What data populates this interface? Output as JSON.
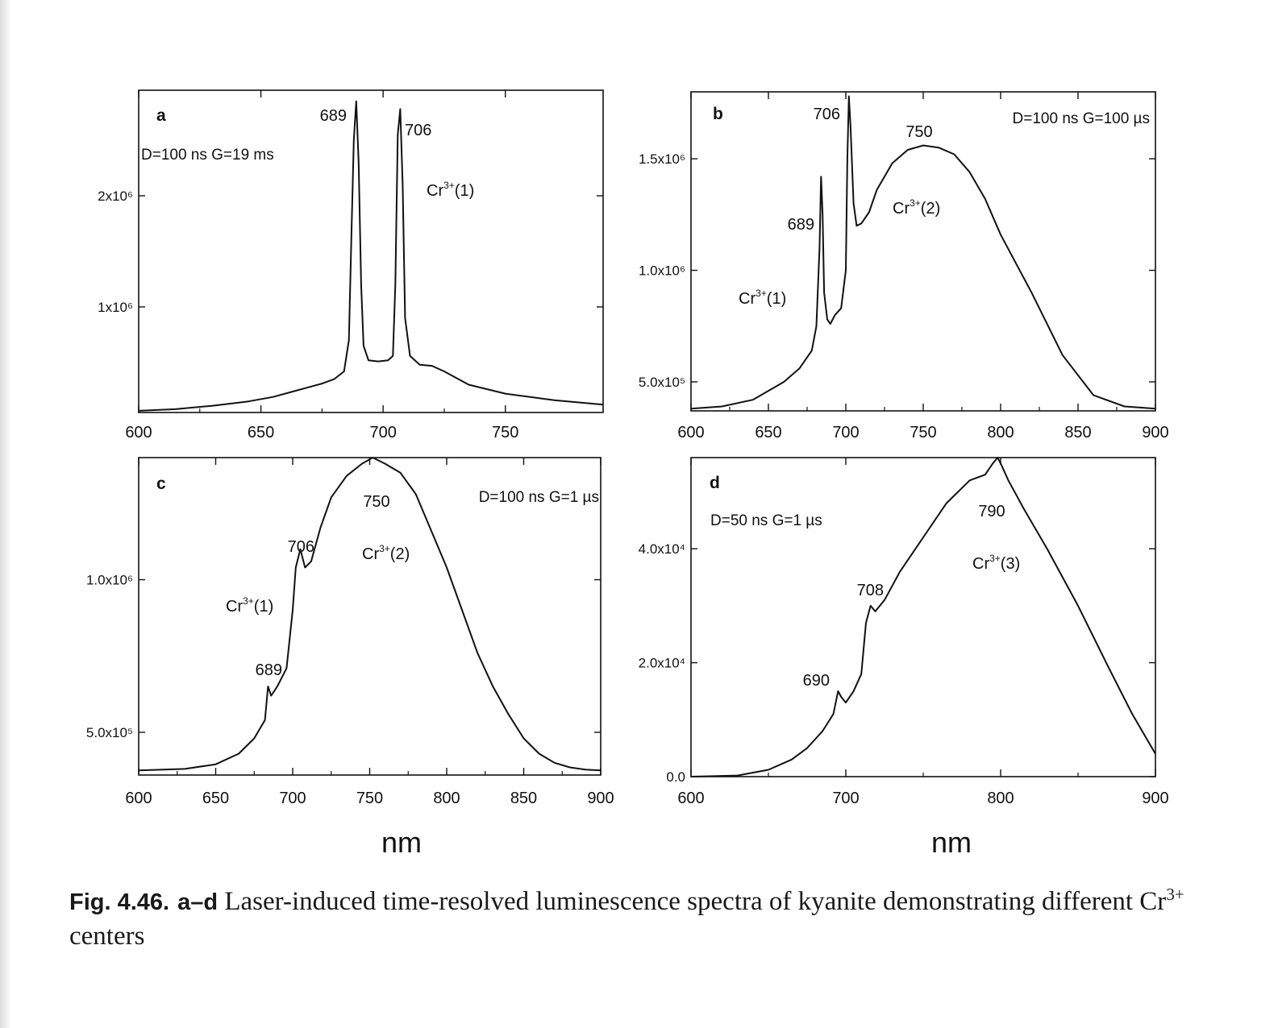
{
  "figure": {
    "caption": {
      "label": "Fig. 4.46.",
      "panels": "a–d",
      "text": "Laser-induced time-resolved luminescence spectra of kyanite demonstrating different Cr",
      "superscript": "3+",
      "text_end": "centers"
    },
    "xlabel_left": "nm",
    "xlabel_right": "nm"
  },
  "chart_data": [
    {
      "type": "line",
      "panel": "a",
      "condition": "D=100 ns G=19 ms",
      "xlim": [
        600,
        790
      ],
      "ylim": [
        50000,
        2950000
      ],
      "xticks": [
        600,
        650,
        700,
        750
      ],
      "yticks": [
        {
          "v": 1000000,
          "label": "1x10⁶"
        },
        {
          "v": 2000000,
          "label": "2x10⁶"
        }
      ],
      "series": [
        {
          "x": [
            600,
            615,
            630,
            645,
            655,
            665,
            675,
            680,
            684,
            686,
            687,
            688,
            689,
            690,
            691,
            692,
            694,
            698,
            702,
            704,
            705,
            706,
            707,
            708,
            709,
            711,
            715,
            720,
            725,
            735,
            750,
            770,
            790
          ],
          "y": [
            65000,
            80000,
            110000,
            150000,
            190000,
            250000,
            310000,
            350000,
            420000,
            700000,
            1600000,
            2500000,
            2850000,
            2300000,
            1200000,
            650000,
            520000,
            510000,
            520000,
            560000,
            1200000,
            2550000,
            2780000,
            2100000,
            900000,
            560000,
            480000,
            470000,
            420000,
            300000,
            220000,
            160000,
            120000
          ]
        }
      ],
      "annotations": [
        {
          "text": "689",
          "x": 689
        },
        {
          "text": "706",
          "x": 706
        },
        {
          "text": "Cr",
          "sup": "3+",
          "suffix": "(1)"
        }
      ]
    },
    {
      "type": "line",
      "panel": "b",
      "condition": "D=100 ns G=100 µs",
      "xlim": [
        600,
        900
      ],
      "ylim": [
        370000,
        1800000
      ],
      "xticks": [
        600,
        650,
        700,
        750,
        800,
        850,
        900
      ],
      "yticks": [
        {
          "v": 500000,
          "label": "5.0x10⁵"
        },
        {
          "v": 1000000,
          "label": "1.0x10⁶"
        },
        {
          "v": 1500000,
          "label": "1.5x10⁶"
        }
      ],
      "series": [
        {
          "x": [
            600,
            620,
            640,
            660,
            670,
            678,
            681,
            683,
            684,
            685,
            686,
            688,
            690,
            693,
            697,
            700,
            701,
            702,
            703,
            705,
            707,
            710,
            715,
            720,
            730,
            740,
            750,
            760,
            770,
            780,
            790,
            800,
            820,
            840,
            860,
            880,
            900
          ],
          "y": [
            380000,
            390000,
            420000,
            500000,
            560000,
            640000,
            750000,
            1100000,
            1420000,
            1250000,
            900000,
            780000,
            760000,
            800000,
            830000,
            1000000,
            1500000,
            1780000,
            1650000,
            1300000,
            1200000,
            1210000,
            1260000,
            1360000,
            1480000,
            1540000,
            1560000,
            1550000,
            1520000,
            1440000,
            1320000,
            1160000,
            900000,
            620000,
            440000,
            390000,
            380000
          ]
        }
      ],
      "annotations": [
        {
          "text": "689",
          "x": 689
        },
        {
          "text": "706",
          "x": 706
        },
        {
          "text": "750",
          "x": 750
        },
        {
          "text": "Cr",
          "sup": "3+",
          "suffix": "(1)"
        },
        {
          "text": "Cr",
          "sup": "3+",
          "suffix": "(2)"
        }
      ]
    },
    {
      "type": "line",
      "panel": "c",
      "condition": "D=100 ns G=1 µs",
      "xlim": [
        600,
        900
      ],
      "ylim": [
        360000,
        1400000
      ],
      "xticks": [
        600,
        650,
        700,
        750,
        800,
        850,
        900
      ],
      "yticks": [
        {
          "v": 500000,
          "label": "5.0x10⁵"
        },
        {
          "v": 1000000,
          "label": "1.0x10⁶"
        }
      ],
      "series": [
        {
          "x": [
            600,
            630,
            650,
            665,
            675,
            682,
            684,
            686,
            690,
            696,
            700,
            702,
            705,
            708,
            712,
            718,
            725,
            735,
            745,
            752,
            760,
            770,
            780,
            790,
            800,
            810,
            820,
            830,
            840,
            850,
            860,
            870,
            880,
            890,
            900
          ],
          "y": [
            375000,
            380000,
            395000,
            430000,
            480000,
            540000,
            650000,
            620000,
            650000,
            710000,
            900000,
            1040000,
            1100000,
            1040000,
            1060000,
            1170000,
            1270000,
            1340000,
            1380000,
            1400000,
            1380000,
            1350000,
            1280000,
            1160000,
            1040000,
            900000,
            760000,
            650000,
            560000,
            480000,
            430000,
            400000,
            385000,
            378000,
            375000
          ]
        }
      ],
      "annotations": [
        {
          "text": "689",
          "x": 689
        },
        {
          "text": "706",
          "x": 706
        },
        {
          "text": "750",
          "x": 750
        },
        {
          "text": "Cr",
          "sup": "3+",
          "suffix": "(1)"
        },
        {
          "text": "Cr",
          "sup": "3+",
          "suffix": "(2)"
        }
      ]
    },
    {
      "type": "line",
      "panel": "d",
      "condition": "D=50 ns G=1 µs",
      "xlim": [
        600,
        900
      ],
      "ylim": [
        0,
        56000
      ],
      "xticks": [
        600,
        700,
        800,
        900
      ],
      "yticks": [
        {
          "v": 0,
          "label": "0.0"
        },
        {
          "v": 20000,
          "label": "2.0x10⁴"
        },
        {
          "v": 40000,
          "label": "4.0x10⁴"
        }
      ],
      "series": [
        {
          "x": [
            600,
            630,
            650,
            665,
            675,
            685,
            692,
            695,
            697,
            700,
            705,
            710,
            713,
            716,
            719,
            725,
            735,
            750,
            765,
            780,
            790,
            795,
            798,
            800,
            805,
            815,
            830,
            850,
            870,
            885,
            900
          ],
          "y": [
            0,
            200,
            1200,
            3000,
            5000,
            8000,
            11000,
            15000,
            14000,
            13000,
            15000,
            18000,
            27000,
            30000,
            29000,
            31000,
            36000,
            42000,
            48000,
            52000,
            53000,
            55000,
            56000,
            55000,
            52000,
            47000,
            40000,
            30000,
            19000,
            11000,
            4000
          ]
        }
      ],
      "annotations": [
        {
          "text": "690",
          "x": 690
        },
        {
          "text": "708",
          "x": 708
        },
        {
          "text": "790",
          "x": 790
        },
        {
          "text": "Cr",
          "sup": "3+",
          "suffix": "(3)"
        }
      ]
    }
  ]
}
